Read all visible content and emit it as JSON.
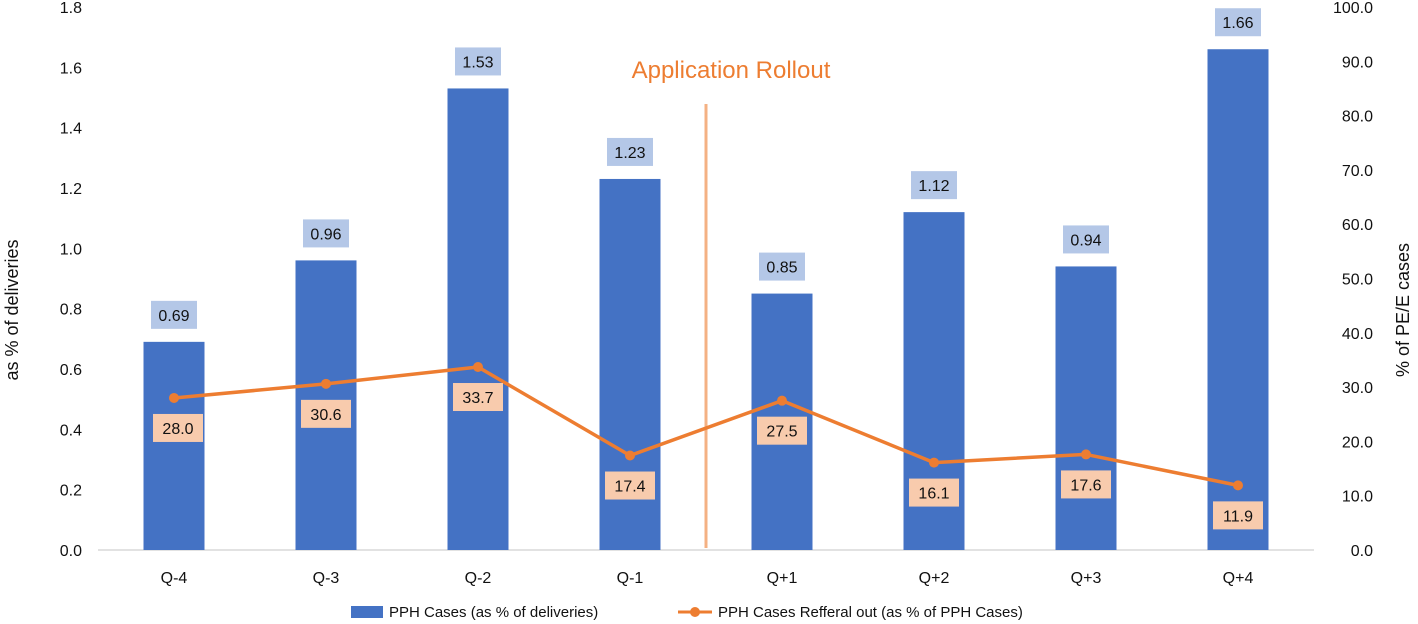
{
  "chart_data": {
    "type": "bar+line",
    "categories": [
      "Q-4",
      "Q-3",
      "Q-2",
      "Q-1",
      "Q+1",
      "Q+2",
      "Q+3",
      "Q+4"
    ],
    "series": [
      {
        "name": "PPH Cases (as % of deliveries)",
        "kind": "bar",
        "axis": "left",
        "values": [
          0.69,
          0.96,
          1.53,
          1.23,
          0.85,
          1.12,
          0.94,
          1.66
        ],
        "labels": [
          "0.69",
          "0.96",
          "1.53",
          "1.23",
          "0.85",
          "1.12",
          "0.94",
          "1.66"
        ],
        "color": "#4472C4",
        "label_bg": "#B4C7E7"
      },
      {
        "name": "PPH Cases Refferal out (as % of PPH Cases)",
        "kind": "line",
        "axis": "right",
        "values": [
          28.0,
          30.6,
          33.7,
          17.4,
          27.5,
          16.1,
          17.6,
          11.9
        ],
        "labels": [
          "28.0",
          "30.6",
          "33.7",
          "17.4",
          "27.5",
          "16.1",
          "17.6",
          "11.9"
        ],
        "color": "#ED7D31",
        "label_bg": "#F8CBAD"
      }
    ],
    "ylabel_left": "as % of deliveries",
    "ylabel_right": "% of  PE/E cases",
    "ylim_left": [
      0,
      1.8
    ],
    "ylim_right": [
      0,
      100
    ],
    "yticks_left": [
      "0.0",
      "0.2",
      "0.4",
      "0.6",
      "0.8",
      "1.0",
      "1.2",
      "1.4",
      "1.6",
      "1.8"
    ],
    "yticks_right": [
      "0.0",
      "10.0",
      "20.0",
      "30.0",
      "40.0",
      "50.0",
      "60.0",
      "70.0",
      "80.0",
      "90.0",
      "100.0"
    ],
    "annotation": {
      "text": "Application Rollout",
      "between_categories": [
        "Q-1",
        "Q+1"
      ],
      "color": "#ED7D31",
      "line_color": "#F4B183"
    },
    "grid": false,
    "legend_position": "bottom"
  }
}
